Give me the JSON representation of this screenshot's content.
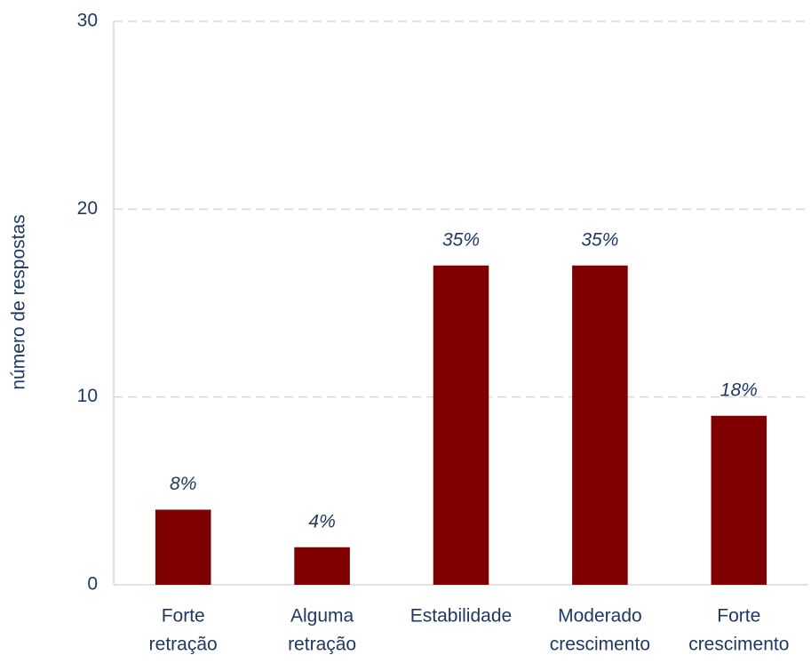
{
  "chart_data": {
    "type": "bar",
    "ylabel": "número de respostas",
    "categories": [
      [
        "Forte",
        "retração"
      ],
      [
        "Alguma",
        "retração"
      ],
      [
        "Estabilidade"
      ],
      [
        "Moderado",
        "crescimento"
      ],
      [
        "Forte",
        "crescimento"
      ]
    ],
    "values": [
      4,
      2,
      17,
      17,
      9
    ],
    "annotations": [
      "8%",
      "4%",
      "35%",
      "35%",
      "18%"
    ],
    "color": "#7f0000",
    "ylim": [
      0,
      30
    ],
    "yticks": [
      0,
      10,
      20,
      30
    ],
    "grid": true
  }
}
